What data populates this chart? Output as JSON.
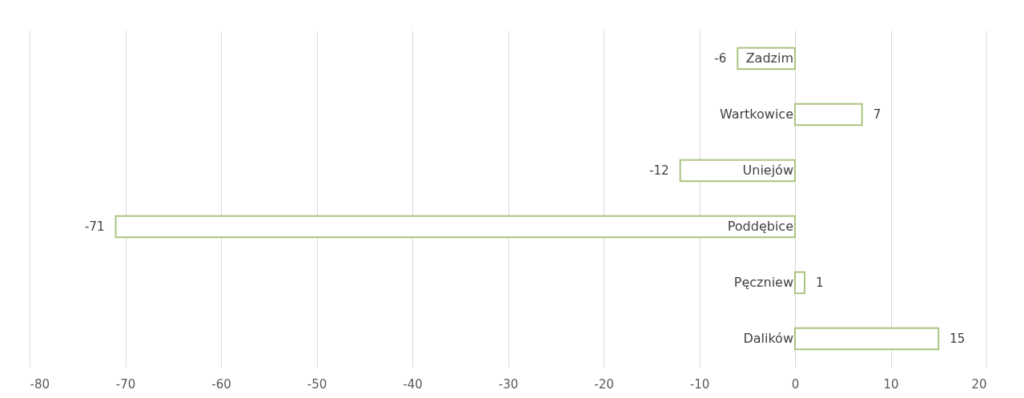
{
  "chart_data": {
    "type": "bar",
    "orientation": "horizontal",
    "categories": [
      "Zadzim",
      "Wartkowice",
      "Uniejów",
      "Poddębice",
      "Pęczniew",
      "Dalików"
    ],
    "values": [
      -6,
      7,
      -12,
      -71,
      1,
      15
    ],
    "color": "#a9c47f",
    "xlim": [
      -80,
      20
    ],
    "xticks": [
      -80,
      -70,
      -60,
      -50,
      -40,
      -30,
      -20,
      -10,
      0,
      10,
      20
    ],
    "grid": "x",
    "data_labels": true
  }
}
